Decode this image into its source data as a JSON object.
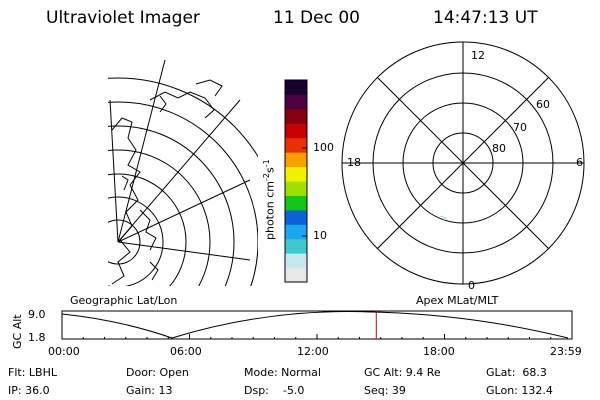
{
  "header": {
    "instrument": "Ultraviolet Imager",
    "date": "11 Dec 00",
    "time": "14:47:13 UT"
  },
  "colorbar": {
    "label": "photon cm",
    "label_sup1": "-2",
    "label_mid": "s",
    "label_sup2": "-1",
    "tick_100": "100",
    "tick_10": "10",
    "colors": [
      "#e8e8e8",
      "#c8e8f0",
      "#40c8d0",
      "#18a8f0",
      "#1060d8",
      "#10c818",
      "#a0e000",
      "#f0f000",
      "#f8a000",
      "#e83000",
      "#c80000",
      "#880010",
      "#500040",
      "#1a0030"
    ]
  },
  "geo_map": {
    "label": "Geographic Lat/Lon"
  },
  "polar_plot": {
    "label": "Apex MLat/MLT",
    "mlt_top": "12",
    "mlt_left": "18",
    "mlt_right": "6",
    "mlt_bottom": "0",
    "lat_60": "60",
    "lat_70": "70",
    "lat_80": "80"
  },
  "orbit_plot": {
    "ylabel": "GC Alt",
    "y_top": "9.0",
    "y_bottom": "1.8",
    "x_ticks": [
      "00:00",
      "06:00",
      "12:00",
      "18:00",
      "23:59"
    ],
    "current_time_marker_hours": 14.79
  },
  "footer": {
    "flt": "Flt: LBHL",
    "ip": "IP: 36.0",
    "door": "Door: Open",
    "gain": "Gain: 13",
    "mode": "Mode: Normal",
    "dsp": "Dsp:    -5.0",
    "gc_alt": "GC Alt: 9.4 Re",
    "seq": "Seq: 39",
    "glat": "GLat:  68.3",
    "glon": "GLon: 132.4"
  }
}
